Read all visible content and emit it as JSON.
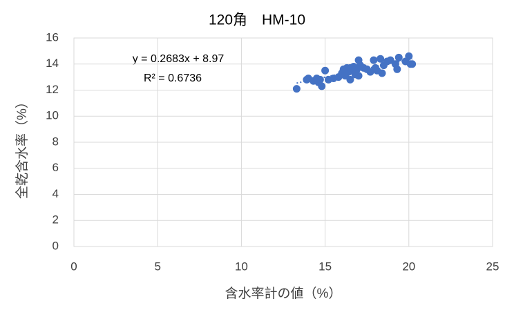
{
  "chart_data": {
    "type": "scatter",
    "title": "120角　HM-10",
    "x_label": "含水率計の値（%）",
    "y_label": "全乾含水率（%）",
    "xlim": [
      0,
      25
    ],
    "xticks": [
      0,
      5,
      10,
      15,
      20,
      25
    ],
    "ylim": [
      0,
      16
    ],
    "yticks": [
      0,
      2,
      4,
      6,
      8,
      10,
      12,
      14,
      16
    ],
    "grid": true,
    "color": "#4472c4",
    "x": [
      13.3,
      13.9,
      14.0,
      14.3,
      14.5,
      14.6,
      14.7,
      14.8,
      15.0,
      15.2,
      15.5,
      15.8,
      16.0,
      16.1,
      16.2,
      16.3,
      16.4,
      16.5,
      16.6,
      16.7,
      16.8,
      16.9,
      17.0,
      17.0,
      17.3,
      17.5,
      17.7,
      17.9,
      18.0,
      18.1,
      18.3,
      18.4,
      18.5,
      18.7,
      18.9,
      19.2,
      19.3,
      19.4,
      19.8,
      20.0,
      20.1,
      20.2,
      16.5,
      17.1
    ],
    "values": [
      12.1,
      12.8,
      12.9,
      12.7,
      12.9,
      12.6,
      12.8,
      12.3,
      13.5,
      12.8,
      12.9,
      13.0,
      13.3,
      13.6,
      13.1,
      13.7,
      13.4,
      12.8,
      13.5,
      13.8,
      13.2,
      13.6,
      14.3,
      13.1,
      13.7,
      13.6,
      13.4,
      14.3,
      13.7,
      13.5,
      14.4,
      13.3,
      13.9,
      14.2,
      14.3,
      14.0,
      13.6,
      14.5,
      14.2,
      14.6,
      14.0,
      14.0,
      13.7,
      13.9
    ],
    "trendline": {
      "equation": "y = 0.2683x + 8.97",
      "r_squared": "R² = 0.6736",
      "slope": 0.2683,
      "intercept": 8.97,
      "x": [
        13.3,
        20.2
      ]
    }
  }
}
